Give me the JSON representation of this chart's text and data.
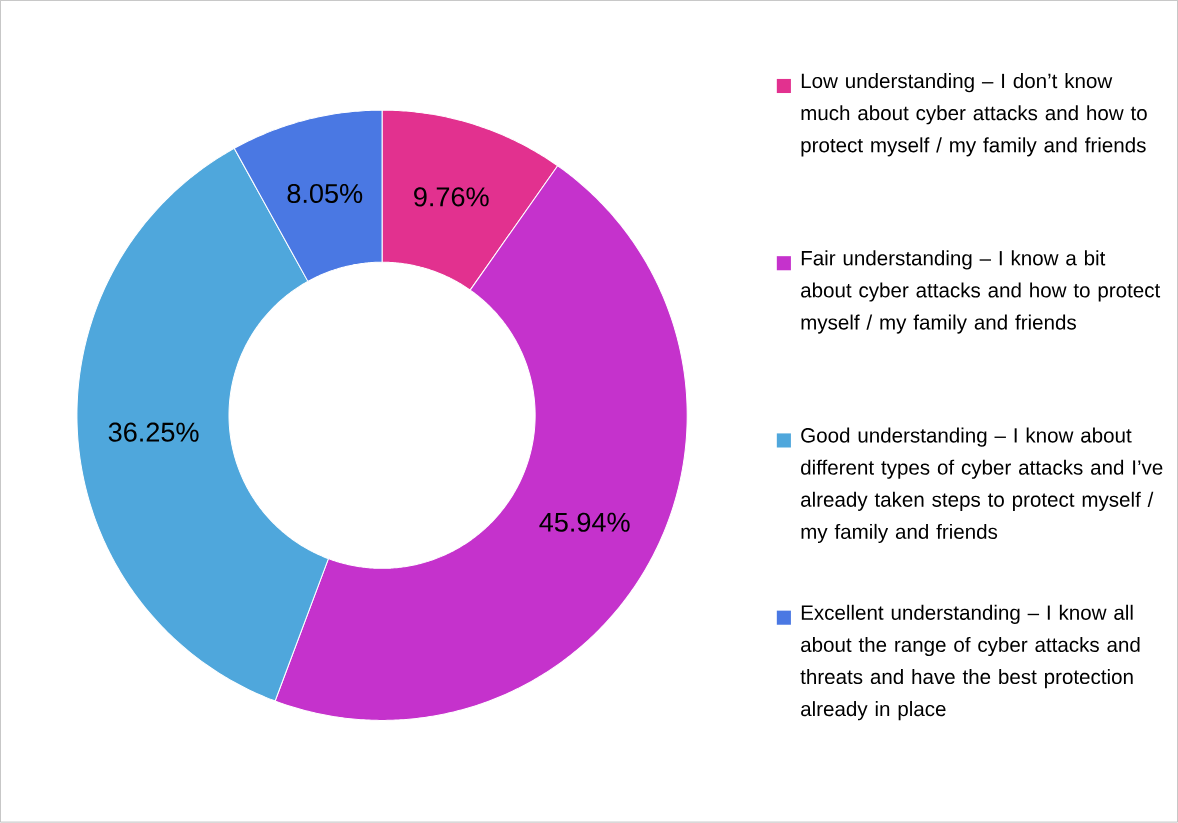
{
  "chart_data": {
    "type": "donut",
    "categories": [
      "Low understanding – I don’t know much about cyber attacks and how to protect myself / my family and friends",
      "Fair understanding – I know a bit about cyber attacks and how to protect myself / my family and friends",
      "Good understanding – I know about different types of cyber attacks and I’ve already taken steps to protect myself / my family and friends",
      "Excellent understanding – I know all about the range of cyber attacks and threats and have the best protection already in place"
    ],
    "values": [
      9.76,
      45.94,
      36.25,
      8.05
    ],
    "value_labels": [
      "9.76%",
      "45.94%",
      "36.25%",
      "8.05%"
    ],
    "colors": [
      "#e2318f",
      "#c532cc",
      "#4fa7dc",
      "#4a78e3"
    ],
    "legend": "right"
  }
}
